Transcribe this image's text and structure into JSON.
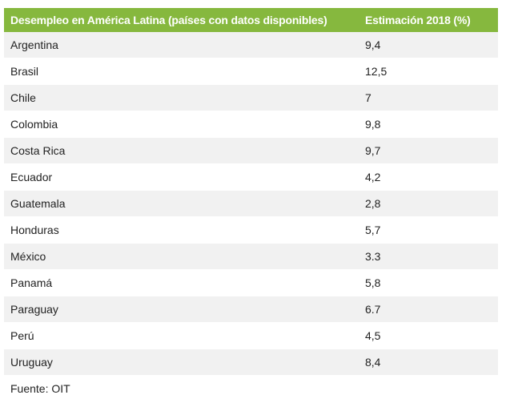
{
  "chart_data": {
    "type": "table",
    "columns": [
      "Desempleo en América Latina (países con datos disponibles)",
      "Estimación 2018 (%)"
    ],
    "rows": [
      {
        "country": "Argentina",
        "value": "9,4"
      },
      {
        "country": "Brasil",
        "value": "12,5"
      },
      {
        "country": "Chile",
        "value": "7"
      },
      {
        "country": "Colombia",
        "value": "9,8"
      },
      {
        "country": "Costa Rica",
        "value": "9,7"
      },
      {
        "country": "Ecuador",
        "value": "4,2"
      },
      {
        "country": "Guatemala",
        "value": "2,8"
      },
      {
        "country": "Honduras",
        "value": "5,7"
      },
      {
        "country": "México",
        "value": "3.3"
      },
      {
        "country": "Panamá",
        "value": "5,8"
      },
      {
        "country": "Paraguay",
        "value": "6.7"
      },
      {
        "country": "Perú",
        "value": "4,5"
      },
      {
        "country": "Uruguay",
        "value": "8,4"
      }
    ],
    "source": "Fuente: OIT"
  },
  "colors": {
    "header_bg": "#86b83e",
    "header_text": "#ffffff",
    "row_stripe": "#f1f1f1"
  }
}
